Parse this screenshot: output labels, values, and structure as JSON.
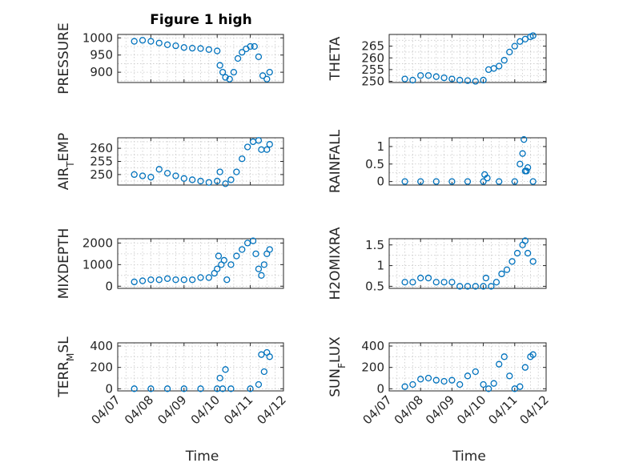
{
  "figure_title": "Figure 1 high",
  "marker_color": "#0072BD",
  "chart_data": [
    {
      "type": "scatter",
      "ylabel": "PRESSURE",
      "ylabel_sub": null,
      "ylim": [
        870,
        1010
      ],
      "yticks": [
        900,
        950,
        1000
      ],
      "xlabel": "",
      "xtick_labels": [],
      "grid": true,
      "x": [
        "04/07 12:00",
        "04/07 18:00",
        "04/08 00:00",
        "04/08 06:00",
        "04/08 12:00",
        "04/08 18:00",
        "04/09 00:00",
        "04/09 06:00",
        "04/09 12:00",
        "04/09 18:00",
        "04/10 00:00",
        "04/10 02:00",
        "04/10 04:00",
        "04/10 06:00",
        "04/10 09:00",
        "04/10 12:00",
        "04/10 15:00",
        "04/10 18:00",
        "04/10 21:00",
        "04/11 00:00",
        "04/11 03:00",
        "04/11 06:00",
        "04/11 09:00",
        "04/11 12:00",
        "04/11 14:00"
      ],
      "y": [
        990,
        993,
        990,
        985,
        980,
        977,
        972,
        970,
        969,
        966,
        962,
        920,
        900,
        885,
        880,
        900,
        940,
        958,
        968,
        975,
        975,
        945,
        890,
        880,
        900
      ]
    },
    {
      "type": "scatter",
      "ylabel": "THETA",
      "ylabel_sub": null,
      "ylim": [
        249.5,
        270
      ],
      "yticks": [
        250,
        255,
        260,
        265
      ],
      "xlabel": "",
      "xtick_labels": [],
      "grid": true,
      "x": [
        "04/07 12:00",
        "04/07 18:00",
        "04/08 00:00",
        "04/08 06:00",
        "04/08 12:00",
        "04/08 18:00",
        "04/09 00:00",
        "04/09 06:00",
        "04/09 12:00",
        "04/09 18:00",
        "04/10 00:00",
        "04/10 04:00",
        "04/10 08:00",
        "04/10 12:00",
        "04/10 16:00",
        "04/10 20:00",
        "04/11 00:00",
        "04/11 04:00",
        "04/11 08:00",
        "04/11 12:00",
        "04/11 14:00"
      ],
      "y": [
        251,
        250.5,
        252.5,
        252.5,
        252,
        251.5,
        251,
        250.5,
        250.3,
        250,
        250.5,
        255,
        255.5,
        256.5,
        259,
        262.5,
        265,
        267,
        268,
        269,
        269.5
      ]
    },
    {
      "type": "scatter",
      "ylabel": "AIR",
      "ylabel_sub": "T",
      "ylabel_suffix": "EMP",
      "ylim": [
        246,
        264
      ],
      "yticks": [
        250,
        255,
        260
      ],
      "xlabel": "",
      "xtick_labels": [],
      "grid": true,
      "x": [
        "04/07 12:00",
        "04/07 18:00",
        "04/08 00:00",
        "04/08 06:00",
        "04/08 12:00",
        "04/08 18:00",
        "04/09 00:00",
        "04/09 06:00",
        "04/09 12:00",
        "04/09 18:00",
        "04/10 00:00",
        "04/10 02:00",
        "04/10 06:00",
        "04/10 10:00",
        "04/10 14:00",
        "04/10 18:00",
        "04/10 22:00",
        "04/11 02:00",
        "04/11 06:00",
        "04/11 08:00",
        "04/11 12:00",
        "04/11 14:00"
      ],
      "y": [
        250,
        249.5,
        249,
        252,
        250.5,
        249.5,
        248.5,
        248,
        247.5,
        247,
        247.5,
        251,
        246.5,
        248,
        251,
        256,
        260.5,
        262.5,
        263,
        259.5,
        259.5,
        261.5
      ]
    },
    {
      "type": "scatter",
      "ylabel": "RAINFALL",
      "ylabel_sub": null,
      "ylim": [
        -0.1,
        1.25
      ],
      "yticks": [
        0,
        0.5,
        1
      ],
      "xlabel": "",
      "xtick_labels": [],
      "grid": true,
      "x": [
        "04/07 12:00",
        "04/08 00:00",
        "04/08 12:00",
        "04/09 00:00",
        "04/09 12:00",
        "04/10 00:00",
        "04/10 01:00",
        "04/10 03:00",
        "04/10 12:00",
        "04/11 00:00",
        "04/11 04:00",
        "04/11 06:00",
        "04/11 07:00",
        "04/11 08:00",
        "04/11 09:00",
        "04/11 10:00",
        "04/11 14:00"
      ],
      "y": [
        0,
        0,
        0,
        0,
        0,
        0,
        0.2,
        0.1,
        0,
        0,
        0.5,
        0.8,
        1.2,
        0.3,
        0.3,
        0.4,
        0
      ]
    },
    {
      "type": "scatter",
      "ylabel": "MIXDEPTH",
      "ylabel_sub": null,
      "ylim": [
        -100,
        2200
      ],
      "yticks": [
        0,
        1000,
        2000
      ],
      "xlabel": "",
      "xtick_labels": [],
      "grid": true,
      "x": [
        "04/07 12:00",
        "04/07 18:00",
        "04/08 00:00",
        "04/08 06:00",
        "04/08 12:00",
        "04/08 18:00",
        "04/09 00:00",
        "04/09 06:00",
        "04/09 12:00",
        "04/09 18:00",
        "04/09 22:00",
        "04/10 00:00",
        "04/10 01:00",
        "04/10 03:00",
        "04/10 05:00",
        "04/10 07:00",
        "04/10 10:00",
        "04/10 14:00",
        "04/10 18:00",
        "04/10 22:00",
        "04/11 02:00",
        "04/11 04:00",
        "04/11 06:00",
        "04/11 08:00",
        "04/11 10:00",
        "04/11 12:00",
        "04/11 14:00"
      ],
      "y": [
        200,
        250,
        300,
        300,
        350,
        300,
        300,
        300,
        400,
        400,
        600,
        800,
        1400,
        1000,
        1200,
        300,
        1000,
        1400,
        1700,
        2000,
        2100,
        1500,
        800,
        500,
        1000,
        1500,
        1700
      ]
    },
    {
      "type": "scatter",
      "ylabel": "H2OMIXRA",
      "ylabel_sub": null,
      "ylim": [
        0.45,
        1.65
      ],
      "yticks": [
        0.5,
        1,
        1.5
      ],
      "xlabel": "",
      "xtick_labels": [],
      "grid": true,
      "x": [
        "04/07 12:00",
        "04/07 18:00",
        "04/08 00:00",
        "04/08 06:00",
        "04/08 12:00",
        "04/08 18:00",
        "04/09 00:00",
        "04/09 06:00",
        "04/09 12:00",
        "04/09 18:00",
        "04/10 00:00",
        "04/10 02:00",
        "04/10 06:00",
        "04/10 10:00",
        "04/10 14:00",
        "04/10 18:00",
        "04/10 22:00",
        "04/11 02:00",
        "04/11 06:00",
        "04/11 08:00",
        "04/11 10:00",
        "04/11 14:00"
      ],
      "y": [
        0.6,
        0.6,
        0.7,
        0.7,
        0.6,
        0.6,
        0.6,
        0.5,
        0.5,
        0.5,
        0.5,
        0.7,
        0.5,
        0.6,
        0.8,
        0.9,
        1.1,
        1.3,
        1.5,
        1.6,
        1.3,
        1.1
      ]
    },
    {
      "type": "scatter",
      "ylabel": "TERR",
      "ylabel_sub": "M",
      "ylabel_suffix": "SL",
      "ylim": [
        -20,
        430
      ],
      "yticks": [
        0,
        200,
        400
      ],
      "xlabel": "Time",
      "xtick_labels": [
        "04/07",
        "04/08",
        "04/09",
        "04/10",
        "04/11",
        "04/12"
      ],
      "grid": true,
      "x": [
        "04/07 12:00",
        "04/08 00:00",
        "04/08 12:00",
        "04/09 00:00",
        "04/09 12:00",
        "04/10 00:00",
        "04/10 02:00",
        "04/10 04:00",
        "04/10 06:00",
        "04/10 10:00",
        "04/11 00:00",
        "04/11 06:00",
        "04/11 08:00",
        "04/11 10:00",
        "04/11 12:00",
        "04/11 14:00"
      ],
      "y": [
        0,
        0,
        0,
        0,
        0,
        0,
        100,
        0,
        180,
        0,
        0,
        40,
        320,
        160,
        340,
        300
      ]
    },
    {
      "type": "scatter",
      "ylabel": "SUN",
      "ylabel_sub": "F",
      "ylabel_suffix": "LUX",
      "ylim": [
        -20,
        430
      ],
      "yticks": [
        0,
        200,
        400
      ],
      "xlabel": "Time",
      "xtick_labels": [
        "04/07",
        "04/08",
        "04/09",
        "04/10",
        "04/11",
        "04/12"
      ],
      "grid": true,
      "x": [
        "04/07 12:00",
        "04/07 18:00",
        "04/08 00:00",
        "04/08 06:00",
        "04/08 12:00",
        "04/08 18:00",
        "04/09 00:00",
        "04/09 06:00",
        "04/09 12:00",
        "04/09 18:00",
        "04/10 00:00",
        "04/10 04:00",
        "04/10 08:00",
        "04/10 12:00",
        "04/10 16:00",
        "04/10 20:00",
        "04/11 00:00",
        "04/11 04:00",
        "04/11 08:00",
        "04/11 12:00",
        "04/11 14:00"
      ],
      "y": [
        20,
        40,
        90,
        100,
        80,
        70,
        80,
        40,
        120,
        160,
        40,
        0,
        50,
        230,
        300,
        120,
        0,
        20,
        200,
        300,
        320
      ]
    }
  ]
}
